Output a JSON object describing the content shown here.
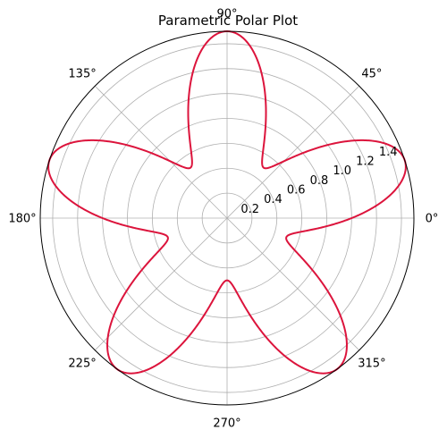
{
  "chart_data": {
    "type": "line",
    "projection": "polar",
    "title": "Parametric Polar Plot",
    "theta_tick_labels": [
      "0°",
      "45°",
      "90°",
      "135°",
      "180°",
      "225°",
      "270°",
      "315°"
    ],
    "theta_ticks_deg": [
      0,
      45,
      90,
      135,
      180,
      225,
      270,
      315
    ],
    "r_ticks": [
      0.2,
      0.4,
      0.6,
      0.8,
      1.0,
      1.2,
      1.4
    ],
    "r_tick_labels": [
      "0.2",
      "0.4",
      "0.6",
      "0.8",
      "1.0",
      "1.2",
      "1.4"
    ],
    "r_label_angle_deg": 22.5,
    "rlim": [
      0,
      1.5
    ],
    "grid": true,
    "legend": "none",
    "series": [
      {
        "equation": "r = 1 + 0.5*sin(5*theta)",
        "theta_range_deg": [
          0,
          360
        ],
        "color": "#dc143c"
      }
    ]
  }
}
